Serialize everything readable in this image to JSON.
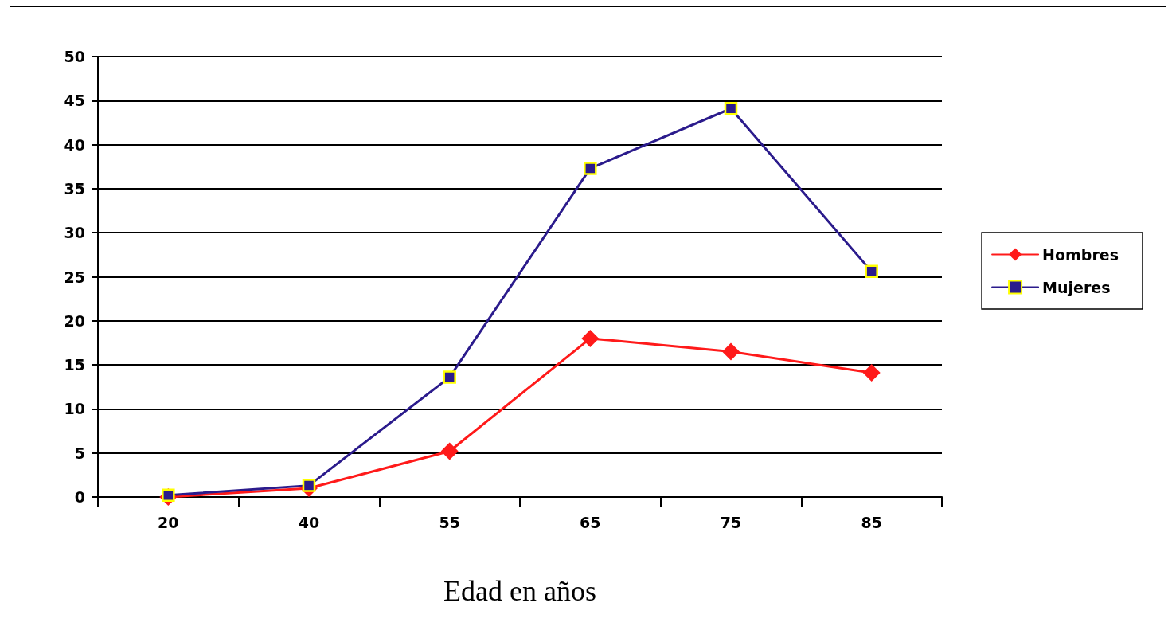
{
  "chart_data": {
    "type": "line",
    "xlabel": "Edad en años",
    "categories": [
      "20",
      "40",
      "55",
      "65",
      "75",
      "85"
    ],
    "series": [
      {
        "name": "Hombres",
        "color": "#ff1a1a",
        "marker": "diamond",
        "values": [
          0,
          1,
          5.2,
          18,
          16.5,
          14.1
        ]
      },
      {
        "name": "Mujeres",
        "color": "#2b1b8c",
        "marker": "square",
        "values": [
          0.2,
          1.3,
          13.6,
          37.3,
          44.1,
          25.6
        ]
      }
    ],
    "ylim": [
      0,
      50
    ],
    "yticks": [
      0,
      5,
      10,
      15,
      20,
      25,
      30,
      35,
      40,
      45,
      50
    ],
    "grid": "y",
    "legend": "right",
    "line_style": "solid"
  }
}
